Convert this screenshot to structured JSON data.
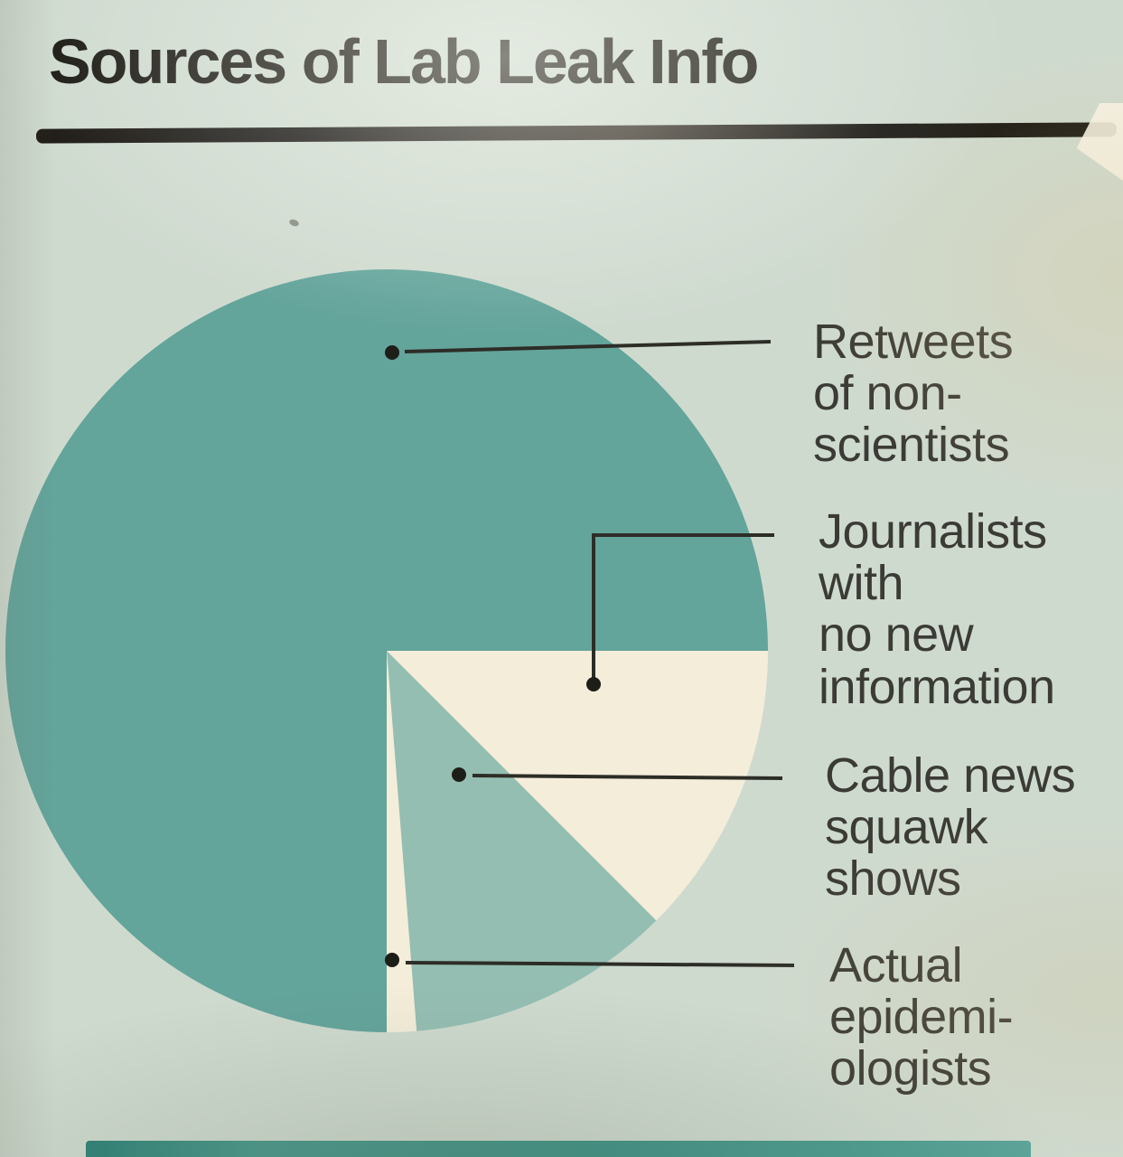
{
  "chart_data": {
    "type": "pie",
    "title": "Sources of Lab Leak Info",
    "legend_position": "right-callouts",
    "direction": "clockwise",
    "start_angle_deg_from_east": 0,
    "slices": [
      {
        "id": "journalists",
        "label": "Journalists with no new information",
        "value_pct": 12.5,
        "color": "#f4edda"
      },
      {
        "id": "cable-news",
        "label": "Cable news squawk shows",
        "value_pct": 11.25,
        "color": "#95beb2"
      },
      {
        "id": "epidemiologists",
        "label": "Actual epidemiologists",
        "value_pct": 1.25,
        "color": "#f4edda"
      },
      {
        "id": "retweets",
        "label": "Retweets of non-scientists",
        "value_pct": 75.0,
        "color": "#63a49b"
      }
    ]
  },
  "callouts": [
    {
      "text": "Retweets\nof non-\nscientists"
    },
    {
      "text": "Journalists\nwith\nno new\ninformation"
    },
    {
      "text": "Cable news\nsquawk\nshows"
    },
    {
      "text": "Actual\nepidemi-\nologists"
    }
  ]
}
